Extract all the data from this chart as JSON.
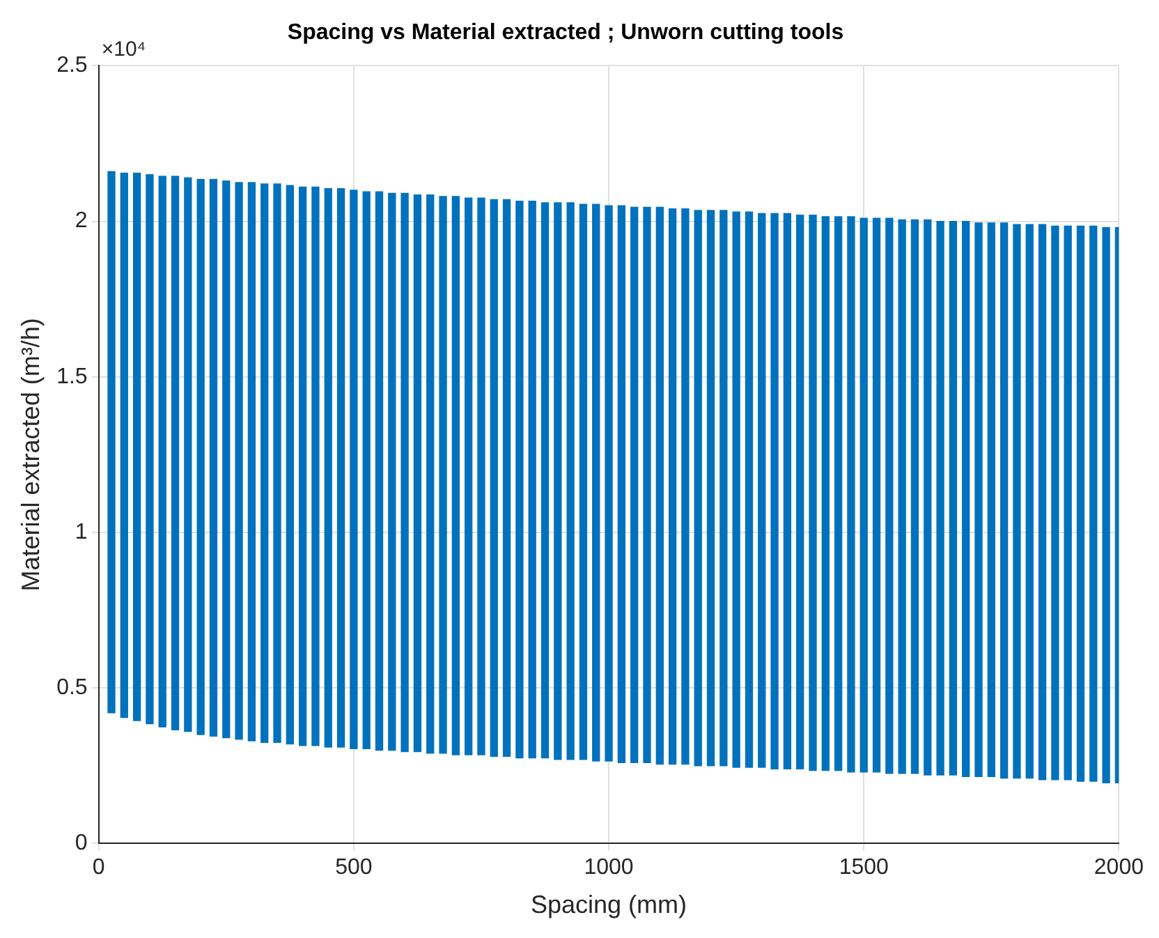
{
  "chart_data": {
    "type": "bar",
    "title": "Spacing vs Material extracted ; Unworn cutting tools",
    "xlabel": "Spacing (mm)",
    "ylabel": "Material extracted (m³/h)",
    "annotations": [
      "×10⁴"
    ],
    "x": [
      25,
      50,
      75,
      100,
      125,
      150,
      175,
      200,
      225,
      250,
      275,
      300,
      325,
      350,
      375,
      400,
      425,
      450,
      475,
      500,
      525,
      550,
      575,
      600,
      625,
      650,
      675,
      700,
      725,
      750,
      775,
      800,
      825,
      850,
      875,
      900,
      925,
      950,
      975,
      1000,
      1025,
      1050,
      1075,
      1100,
      1125,
      1150,
      1175,
      1200,
      1225,
      1250,
      1275,
      1300,
      1325,
      1350,
      1375,
      1400,
      1425,
      1450,
      1475,
      1500,
      1525,
      1550,
      1575,
      1600,
      1625,
      1650,
      1675,
      1700,
      1725,
      1750,
      1775,
      1800,
      1825,
      1850,
      1875,
      1900,
      1925,
      1950,
      1975,
      2000
    ],
    "base": [
      0.42,
      0.405,
      0.395,
      0.385,
      0.375,
      0.365,
      0.36,
      0.35,
      0.345,
      0.34,
      0.335,
      0.33,
      0.325,
      0.325,
      0.32,
      0.315,
      0.315,
      0.31,
      0.31,
      0.305,
      0.305,
      0.3,
      0.3,
      0.295,
      0.295,
      0.29,
      0.29,
      0.285,
      0.285,
      0.285,
      0.28,
      0.28,
      0.275,
      0.275,
      0.275,
      0.27,
      0.27,
      0.27,
      0.265,
      0.265,
      0.26,
      0.26,
      0.26,
      0.255,
      0.255,
      0.255,
      0.25,
      0.25,
      0.25,
      0.245,
      0.245,
      0.245,
      0.24,
      0.24,
      0.24,
      0.235,
      0.235,
      0.235,
      0.23,
      0.23,
      0.23,
      0.225,
      0.225,
      0.225,
      0.22,
      0.22,
      0.22,
      0.215,
      0.215,
      0.215,
      0.21,
      0.21,
      0.21,
      0.205,
      0.205,
      0.205,
      0.2,
      0.2,
      0.195,
      0.195
    ],
    "values": [
      1.74,
      1.75,
      1.76,
      1.765,
      1.77,
      1.78,
      1.78,
      1.785,
      1.79,
      1.79,
      1.79,
      1.795,
      1.795,
      1.795,
      1.795,
      1.795,
      1.795,
      1.795,
      1.795,
      1.795,
      1.79,
      1.795,
      1.79,
      1.795,
      1.79,
      1.795,
      1.79,
      1.795,
      1.79,
      1.79,
      1.79,
      1.79,
      1.79,
      1.79,
      1.785,
      1.79,
      1.79,
      1.785,
      1.79,
      1.785,
      1.79,
      1.785,
      1.785,
      1.79,
      1.785,
      1.785,
      1.785,
      1.785,
      1.785,
      1.785,
      1.785,
      1.78,
      1.785,
      1.785,
      1.78,
      1.785,
      1.78,
      1.78,
      1.785,
      1.78,
      1.78,
      1.785,
      1.78,
      1.78,
      1.785,
      1.78,
      1.78,
      1.785,
      1.78,
      1.78,
      1.785,
      1.78,
      1.78,
      1.785,
      1.78,
      1.78,
      1.785,
      1.785,
      1.785,
      1.785
    ],
    "color": "#0072bd",
    "xlim": [
      0,
      2000
    ],
    "xticks": [
      0,
      500,
      1000,
      1500,
      2000
    ],
    "ylim": [
      0,
      2.5
    ],
    "yticks": [
      0,
      0.5,
      1,
      1.5,
      2,
      2.5
    ],
    "grid": true
  }
}
